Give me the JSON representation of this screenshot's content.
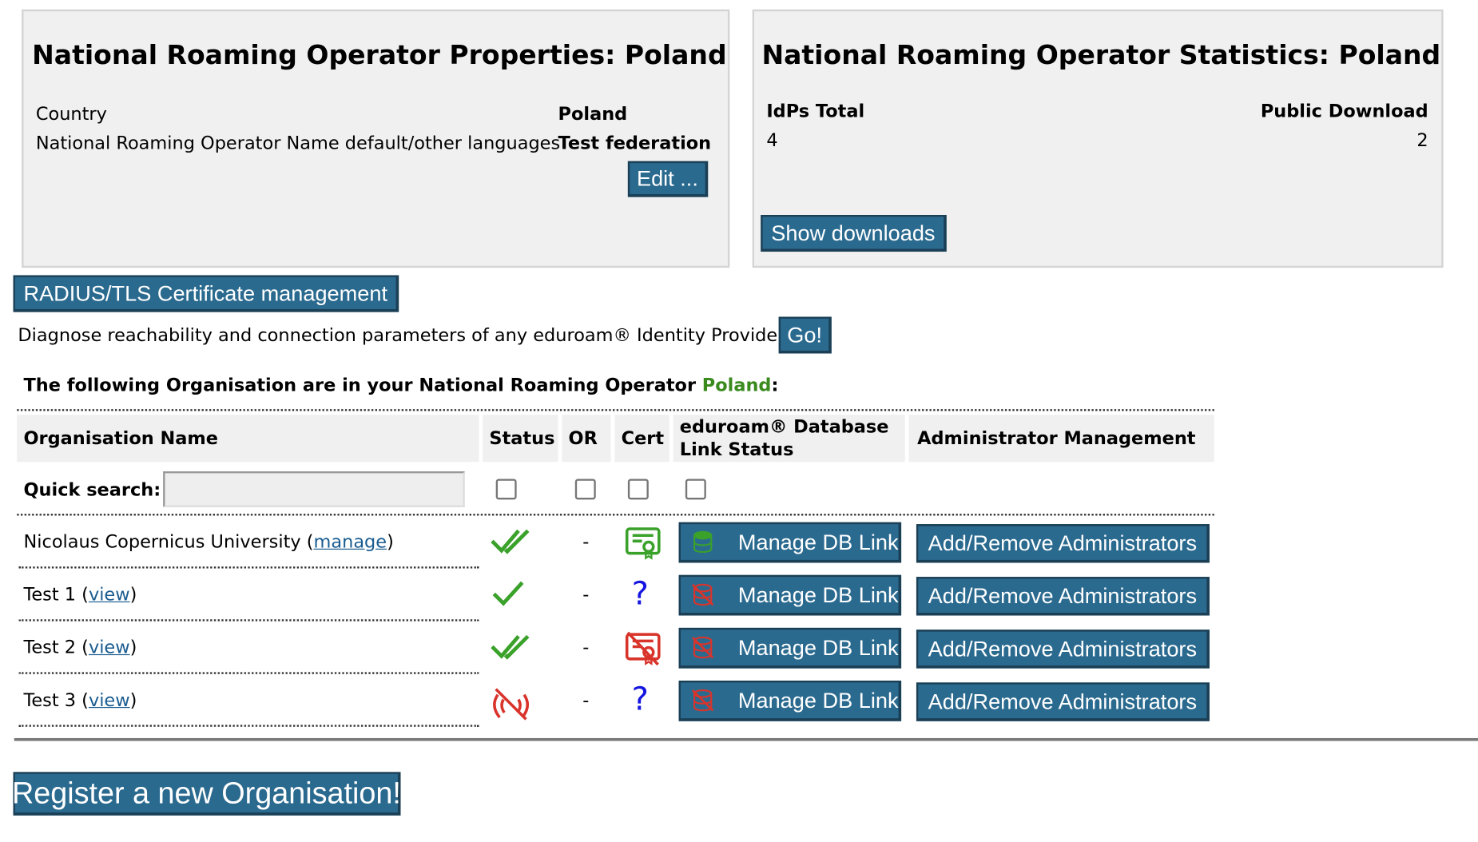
{
  "properties": {
    "title": "National Roaming Operator Properties: Poland",
    "rows": [
      [
        "Country",
        "Poland"
      ],
      [
        "National Roaming Operator Name default/other languages",
        "Test federation"
      ]
    ],
    "edit": "Edit ..."
  },
  "statistics": {
    "title": "National Roaming Operator Statistics: Poland",
    "headers": [
      "IdPs Total",
      "Public Download"
    ],
    "values": [
      4,
      2
    ],
    "show_downloads": "Show downloads"
  },
  "radius_button": "RADIUS/TLS Certificate management",
  "diagnose": {
    "text": "Diagnose reachability and connection parameters of any eduroam® Identity Provider",
    "button": "Go!"
  },
  "heading": {
    "prefix": "The following Organisation are in your National Roaming Operator ",
    "country": "Poland",
    "suffix": ":"
  },
  "table": {
    "headers": [
      "Organisation Name",
      "Status",
      "OR",
      "Cert",
      "eduroam® Database Link Status",
      "Administrator Management"
    ],
    "quick_search": "Quick search:",
    "open": "(",
    "close": ")",
    "rows": [
      {
        "name": "Nicolaus Copernicus University",
        "link": "manage",
        "or": "-",
        "db": "Manage DB Link",
        "admin": "Add/Remove Administrators"
      },
      {
        "name": "Test 1",
        "link": "view",
        "or": "-",
        "cert": "?",
        "db": "Manage DB Link",
        "admin": "Add/Remove Administrators"
      },
      {
        "name": "Test 2",
        "link": "view",
        "or": "-",
        "db": "Manage DB Link",
        "admin": "Add/Remove Administrators"
      },
      {
        "name": "Test 3",
        "link": "view",
        "or": "-",
        "cert": "?",
        "db": "Manage DB Link",
        "admin": "Add/Remove Administrators"
      }
    ]
  },
  "register": "Register a new Organisation!"
}
